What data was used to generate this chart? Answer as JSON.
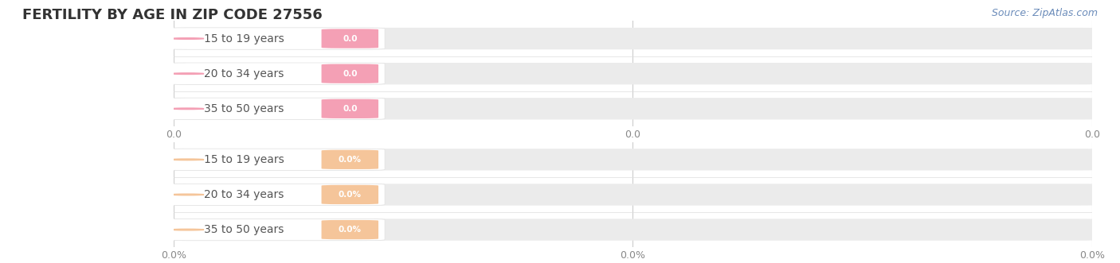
{
  "title": "FERTILITY BY AGE IN ZIP CODE 27556",
  "source": "Source: ZipAtlas.com",
  "top_section": {
    "categories": [
      "15 to 19 years",
      "20 to 34 years",
      "35 to 50 years"
    ],
    "values": [
      0.0,
      0.0,
      0.0
    ],
    "bar_color": "#f4a0b5",
    "value_label_color": "#ffffff",
    "x_tick_labels": [
      "0.0",
      "0.0",
      "0.0"
    ]
  },
  "bottom_section": {
    "categories": [
      "15 to 19 years",
      "20 to 34 years",
      "35 to 50 years"
    ],
    "values": [
      0.0,
      0.0,
      0.0
    ],
    "bar_color": "#f5c59a",
    "value_label_color": "#ffffff",
    "x_tick_labels": [
      "0.0%",
      "0.0%",
      "0.0%"
    ]
  },
  "fig_bg_color": "#ffffff",
  "bar_bg_color": "#ebebeb",
  "bar_height": 0.6,
  "title_fontsize": 13,
  "label_fontsize": 10,
  "tick_fontsize": 9,
  "source_fontsize": 9,
  "source_color": "#6b8cba"
}
